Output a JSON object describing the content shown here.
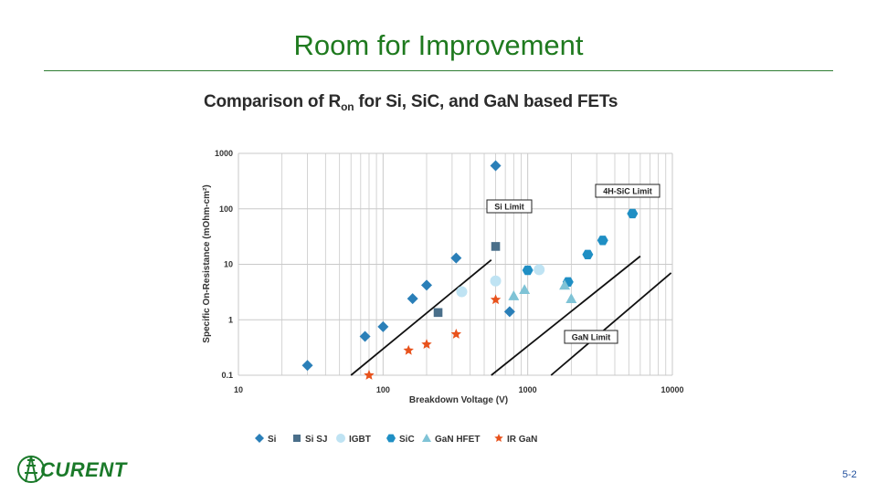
{
  "slide": {
    "title": "Room for Improvement",
    "page_number": "5-2"
  },
  "logo": {
    "text": "CURENT",
    "icon": "tower-icon"
  },
  "colors": {
    "accent": "#1f7a1f",
    "si": "#2a7fb8",
    "sisj": "#4a6f8a",
    "igbt": "#bfe3f3",
    "sic": "#1f8fc4",
    "ganhfet": "#7fc3d6",
    "irgan": "#e8521c",
    "grid": "#c9c9c9"
  },
  "chart_data": {
    "type": "scatter",
    "title": "Comparison of R",
    "title_sub": "on",
    "title_suffix": " for Si, SiC, and GaN based FETs",
    "xlabel": "Breakdown Voltage (V)",
    "ylabel": "Specific On-Resistance (mOhm-cm²)",
    "x_scale": "log",
    "y_scale": "log",
    "xlim": [
      10,
      10000
    ],
    "ylim": [
      0.1,
      1000
    ],
    "x_ticks": [
      "10",
      "100",
      "1000",
      "10000"
    ],
    "y_ticks": [
      "0.1",
      "1",
      "10",
      "100",
      "1000"
    ],
    "grid": true,
    "legend_position": "bottom",
    "limits": [
      {
        "name": "Si Limit",
        "x": [
          60,
          560
        ],
        "y": [
          0.1,
          12
        ]
      },
      {
        "name": "4H-SiC Limit",
        "x": [
          560,
          6000
        ],
        "y": [
          0.1,
          14
        ]
      },
      {
        "name": "GaN Limit",
        "x": [
          1450,
          9800
        ],
        "y": [
          0.1,
          7
        ]
      }
    ],
    "series": [
      {
        "name": "Si",
        "marker": "diamond",
        "points": [
          [
            30,
            0.15
          ],
          [
            75,
            0.5
          ],
          [
            100,
            0.75
          ],
          [
            160,
            2.4
          ],
          [
            200,
            4.2
          ],
          [
            320,
            13
          ],
          [
            600,
            600
          ],
          [
            750,
            1.4
          ]
        ]
      },
      {
        "name": "Si SJ",
        "marker": "square",
        "points": [
          [
            240,
            1.35
          ],
          [
            600,
            21
          ]
        ]
      },
      {
        "name": "IGBT",
        "marker": "circle",
        "points": [
          [
            350,
            3.2
          ],
          [
            600,
            5
          ],
          [
            1200,
            8
          ]
        ]
      },
      {
        "name": "SiC",
        "marker": "hexagon",
        "points": [
          [
            1000,
            7.8
          ],
          [
            1900,
            4.8
          ],
          [
            2600,
            15
          ],
          [
            3300,
            27
          ],
          [
            5300,
            82
          ]
        ]
      },
      {
        "name": "GaN HFET",
        "marker": "triangle",
        "points": [
          [
            800,
            2.7
          ],
          [
            950,
            3.5
          ],
          [
            1800,
            4.2
          ],
          [
            2000,
            2.4
          ]
        ]
      },
      {
        "name": "IR GaN",
        "marker": "star",
        "points": [
          [
            80,
            0.1
          ],
          [
            150,
            0.28
          ],
          [
            200,
            0.36
          ],
          [
            320,
            0.55
          ],
          [
            600,
            2.3
          ]
        ]
      }
    ]
  }
}
